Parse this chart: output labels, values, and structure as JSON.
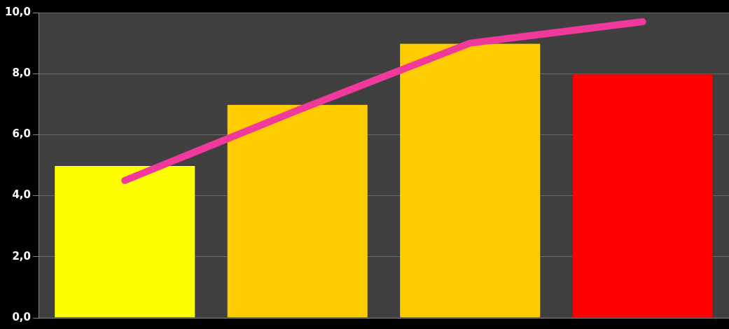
{
  "chart_data": {
    "type": "bar",
    "categories": [
      null,
      null,
      null,
      null
    ],
    "series": [
      {
        "colors": [
          "#ffff00",
          "#ffcc00",
          "#ffcc00",
          "#ff0000"
        ],
        "values": [
          5,
          7,
          9,
          8
        ]
      },
      {
        "type": "line",
        "color": "#f0399a",
        "values": [
          4.5,
          6.8,
          9.0,
          9.7
        ]
      }
    ],
    "ylim": [
      0,
      10
    ],
    "yticks": [
      {
        "value": 0,
        "label": "0,0"
      },
      {
        "value": 2,
        "label": "2,0"
      },
      {
        "value": 4,
        "label": "4,0"
      },
      {
        "value": 6,
        "label": "6,0"
      },
      {
        "value": 8,
        "label": "8,0"
      },
      {
        "value": 10,
        "label": "10,0"
      }
    ],
    "grid": "y",
    "tick_labels": "y",
    "marker": "none"
  }
}
